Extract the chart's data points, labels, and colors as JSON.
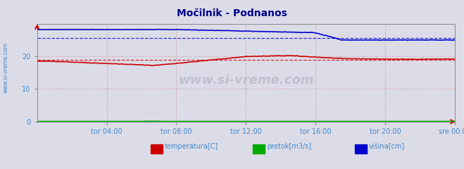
{
  "title": "Močilnik - Podnanos",
  "title_color": "#00008B",
  "bg_color": "#dcdce8",
  "plot_bg_color": "#dcdce8",
  "ylim": [
    0,
    30
  ],
  "xlim": [
    0,
    287
  ],
  "xtick_labels": [
    "tor 04:00",
    "tor 08:00",
    "tor 12:00",
    "tor 16:00",
    "tor 20:00",
    "sre 00:00"
  ],
  "xtick_positions": [
    48,
    96,
    144,
    192,
    240,
    288
  ],
  "ytick_labels": [
    "0",
    "10",
    "20"
  ],
  "ytick_positions": [
    0,
    10,
    20
  ],
  "legend_labels": [
    "temperatura[C]",
    "pretok[m3/s]",
    "višina[cm]"
  ],
  "legend_colors": [
    "#cc0000",
    "#00aa00",
    "#0000cc"
  ],
  "temp_color": "#cc0000",
  "pretok_color": "#00aa00",
  "visina_color": "#0000cc",
  "grid_h_color": "#cc9999",
  "grid_v_color": "#cc9999",
  "dashed_temp_avg": 19.0,
  "dashed_visina_avg": 25.5,
  "watermark": "www.si-vreme.com",
  "side_label": "www.si-vreme.com",
  "axis_label_color": "#4488cc",
  "spine_color": "#888888"
}
